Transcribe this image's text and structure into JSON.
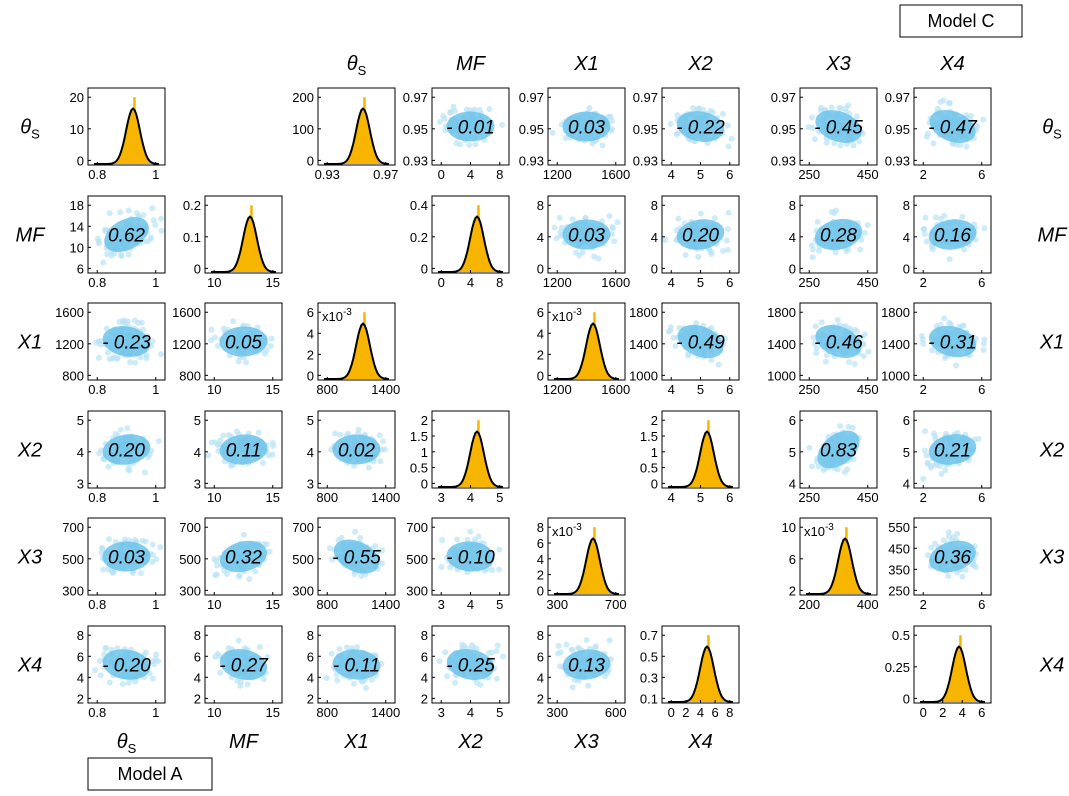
{
  "model_a": {
    "label": "Model A",
    "variables": [
      {
        "text": "θ",
        "sub": "S"
      },
      {
        "text": "MF"
      },
      {
        "text": "X1"
      },
      {
        "text": "X2"
      },
      {
        "text": "X3"
      },
      {
        "text": "X4"
      }
    ],
    "rows": [
      {
        "panels": [
          {
            "type": "hist",
            "yticks": [
              0,
              10,
              20
            ],
            "xticks": [
              0.8,
              1
            ]
          }
        ]
      },
      {
        "panels": [
          {
            "type": "scatter",
            "value": 0.62,
            "value_label": "0.62",
            "yticks": [
              6,
              10,
              14,
              18
            ],
            "xticks": [
              0.8,
              1
            ]
          },
          {
            "type": "hist",
            "yticks": [
              0,
              0.1,
              0.2
            ],
            "xticks": [
              10,
              15
            ]
          }
        ]
      },
      {
        "panels": [
          {
            "type": "scatter",
            "value": -0.23,
            "value_label": "- 0.23",
            "yticks": [
              800,
              1200,
              1600
            ],
            "xticks": [
              0.8,
              1
            ]
          },
          {
            "type": "scatter",
            "value": 0.05,
            "value_label": "0.05",
            "yticks": [
              800,
              1200,
              1600
            ],
            "xticks": [
              10,
              15
            ]
          },
          {
            "type": "hist",
            "yticks": [
              0,
              2,
              4,
              6
            ],
            "xticks": [
              800,
              1400
            ],
            "multiplier": {
              "base": "x10",
              "exponent": "-3"
            }
          }
        ]
      },
      {
        "panels": [
          {
            "type": "scatter",
            "value": 0.2,
            "value_label": "0.20",
            "yticks": [
              3,
              4,
              5
            ],
            "xticks": [
              0.8,
              1
            ]
          },
          {
            "type": "scatter",
            "value": 0.11,
            "value_label": "0.11",
            "yticks": [
              3,
              4,
              5
            ],
            "xticks": [
              10,
              15
            ]
          },
          {
            "type": "scatter",
            "value": 0.02,
            "value_label": "0.02",
            "yticks": [
              3,
              4,
              5
            ],
            "xticks": [
              800,
              1400
            ]
          },
          {
            "type": "hist",
            "yticks": [
              0,
              0.5,
              1,
              1.5,
              2
            ],
            "xticks": [
              3,
              4,
              5
            ]
          }
        ]
      },
      {
        "panels": [
          {
            "type": "scatter",
            "value": 0.03,
            "value_label": "0.03",
            "yticks": [
              300,
              500,
              700
            ],
            "xticks": [
              0.8,
              1
            ]
          },
          {
            "type": "scatter",
            "value": 0.32,
            "value_label": "0.32",
            "yticks": [
              300,
              500,
              700
            ],
            "xticks": [
              10,
              15
            ]
          },
          {
            "type": "scatter",
            "value": -0.55,
            "value_label": "- 0.55",
            "yticks": [
              300,
              500,
              700
            ],
            "xticks": [
              800,
              1400
            ]
          },
          {
            "type": "scatter",
            "value": -0.1,
            "value_label": "- 0.10",
            "yticks": [
              300,
              500,
              700
            ],
            "xticks": [
              3,
              4,
              5
            ]
          },
          {
            "type": "hist",
            "yticks": [
              0,
              2,
              4,
              6,
              8
            ],
            "xticks": [
              300,
              700
            ],
            "multiplier": {
              "base": "x10",
              "exponent": "-3"
            }
          }
        ]
      },
      {
        "panels": [
          {
            "type": "scatter",
            "value": -0.2,
            "value_label": "- 0.20",
            "yticks": [
              2,
              4,
              6,
              8
            ],
            "xticks": [
              0.8,
              1
            ]
          },
          {
            "type": "scatter",
            "value": -0.27,
            "value_label": "- 0.27",
            "yticks": [
              2,
              4,
              6,
              8
            ],
            "xticks": [
              10,
              15
            ]
          },
          {
            "type": "scatter",
            "value": -0.11,
            "value_label": "- 0.11",
            "yticks": [
              2,
              4,
              6,
              8
            ],
            "xticks": [
              800,
              1400
            ]
          },
          {
            "type": "scatter",
            "value": -0.25,
            "value_label": "- 0.25",
            "yticks": [
              2,
              4,
              6,
              8
            ],
            "xticks": [
              3,
              4,
              5
            ]
          },
          {
            "type": "scatter",
            "value": 0.13,
            "value_label": "0.13",
            "yticks": [
              2,
              4,
              6,
              8
            ],
            "xticks": [
              300,
              600
            ]
          },
          {
            "type": "hist",
            "yticks": [
              0.1,
              0.3,
              0.5,
              0.7
            ],
            "xticks": [
              0,
              2,
              4,
              6,
              8
            ]
          }
        ]
      }
    ]
  },
  "model_c": {
    "label": "Model C",
    "variables": [
      {
        "text": "θ",
        "sub": "S"
      },
      {
        "text": "MF"
      },
      {
        "text": "X1"
      },
      {
        "text": "X2"
      },
      {
        "text": "X3"
      },
      {
        "text": "X4"
      }
    ],
    "rows": [
      {
        "panels": [
          {
            "type": "hist",
            "yticks": [
              0,
              100,
              200
            ],
            "xticks": [
              0.93,
              0.97
            ]
          },
          {
            "type": "scatter",
            "value": -0.01,
            "value_label": "- 0.01",
            "yticks": [
              0.93,
              0.95,
              0.97
            ],
            "xticks": [
              0,
              4,
              8
            ]
          },
          {
            "type": "scatter",
            "value": 0.03,
            "value_label": "0.03",
            "yticks": [
              0.93,
              0.95,
              0.97
            ],
            "xticks": [
              1200,
              1600
            ]
          },
          {
            "type": "scatter",
            "value": -0.22,
            "value_label": "- 0.22",
            "yticks": [
              0.93,
              0.95,
              0.97
            ],
            "xticks": [
              4,
              5,
              6
            ]
          },
          {
            "type": "scatter",
            "value": -0.45,
            "value_label": "- 0.45",
            "yticks": [
              0.93,
              0.95,
              0.97
            ],
            "xticks": [
              250,
              450
            ]
          },
          {
            "type": "scatter",
            "value": -0.47,
            "value_label": "- 0.47",
            "yticks": [
              0.93,
              0.95,
              0.97
            ],
            "xticks": [
              2,
              6
            ]
          }
        ]
      },
      {
        "panels": [
          {
            "type": "hist",
            "yticks": [
              0,
              0.2,
              0.4
            ],
            "xticks": [
              0,
              4,
              8
            ]
          },
          {
            "type": "scatter",
            "value": 0.03,
            "value_label": "0.03",
            "yticks": [
              0,
              4,
              8
            ],
            "xticks": [
              1200,
              1600
            ]
          },
          {
            "type": "scatter",
            "value": 0.2,
            "value_label": "0.20",
            "yticks": [
              0,
              4,
              8
            ],
            "xticks": [
              4,
              5,
              6
            ]
          },
          {
            "type": "scatter",
            "value": 0.28,
            "value_label": "0.28",
            "yticks": [
              0,
              4,
              8
            ],
            "xticks": [
              250,
              450
            ]
          },
          {
            "type": "scatter",
            "value": 0.16,
            "value_label": "0.16",
            "yticks": [
              0,
              4,
              8
            ],
            "xticks": [
              2,
              6
            ]
          }
        ]
      },
      {
        "panels": [
          {
            "type": "hist",
            "yticks": [
              0,
              2,
              4,
              6
            ],
            "xticks": [
              1200,
              1600
            ],
            "multiplier": {
              "base": "x10",
              "exponent": "-3"
            }
          },
          {
            "type": "scatter",
            "value": -0.49,
            "value_label": "- 0.49",
            "yticks": [
              1000,
              1400,
              1800
            ],
            "xticks": [
              4,
              5,
              6
            ]
          },
          {
            "type": "scatter",
            "value": -0.46,
            "value_label": "- 0.46",
            "yticks": [
              1000,
              1400,
              1800
            ],
            "xticks": [
              250,
              450
            ]
          },
          {
            "type": "scatter",
            "value": -0.31,
            "value_label": "- 0.31",
            "yticks": [
              1000,
              1400,
              1800
            ],
            "xticks": [
              2,
              6
            ]
          }
        ]
      },
      {
        "panels": [
          {
            "type": "hist",
            "yticks": [
              0,
              0.5,
              1,
              1.5,
              2
            ],
            "xticks": [
              4,
              5,
              6
            ]
          },
          {
            "type": "scatter",
            "value": 0.83,
            "value_label": "0.83",
            "yticks": [
              4,
              5,
              6
            ],
            "xticks": [
              250,
              450
            ]
          },
          {
            "type": "scatter",
            "value": 0.21,
            "value_label": "0.21",
            "yticks": [
              4,
              5,
              6
            ],
            "xticks": [
              2,
              6
            ]
          }
        ]
      },
      {
        "panels": [
          {
            "type": "hist",
            "yticks": [
              2,
              6,
              10
            ],
            "xticks": [
              200,
              400
            ],
            "multiplier": {
              "base": "x10",
              "exponent": "-3"
            }
          },
          {
            "type": "scatter",
            "value": 0.36,
            "value_label": "0.36",
            "yticks": [
              250,
              350,
              450,
              550
            ],
            "xticks": [
              2,
              6
            ]
          }
        ]
      },
      {
        "panels": [
          {
            "type": "hist",
            "yticks": [
              0,
              0.25,
              0.5
            ],
            "xticks": [
              0,
              2,
              4,
              6
            ]
          }
        ]
      }
    ]
  }
}
